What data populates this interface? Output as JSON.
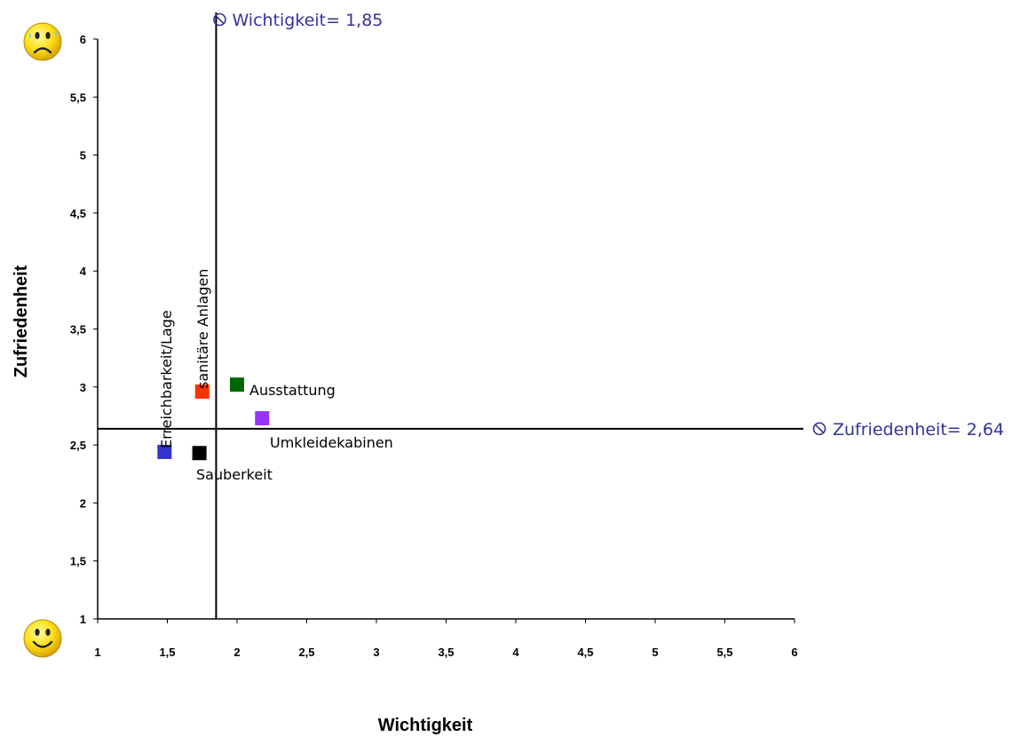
{
  "chart_data": {
    "type": "scatter",
    "xlabel": "Wichtigkeit",
    "ylabel": "Zufriedenheit",
    "xlim": [
      1,
      6
    ],
    "ylim": [
      1,
      6
    ],
    "x_ticks": [
      "1",
      "1,5",
      "2",
      "2,5",
      "3",
      "3,5",
      "4",
      "4,5",
      "5",
      "5,5",
      "6"
    ],
    "y_ticks": [
      "1",
      "1,5",
      "2",
      "2,5",
      "3",
      "3,5",
      "4",
      "4,5",
      "5",
      "5,5",
      "6"
    ],
    "grid": false,
    "points": [
      {
        "label": "Erreichbarkeit/Lage",
        "x": 1.48,
        "y": 2.44,
        "color": "#3333cc"
      },
      {
        "label": "sanitäre Anlagen",
        "x": 1.75,
        "y": 2.96,
        "color": "#ff3300"
      },
      {
        "label": "Ausstattung",
        "x": 2.0,
        "y": 3.02,
        "color": "#006600"
      },
      {
        "label": "Umkleidekabinen",
        "x": 2.18,
        "y": 2.73,
        "color": "#9933ff"
      },
      {
        "label": "Sauberkeit",
        "x": 1.73,
        "y": 2.43,
        "color": "#000000"
      }
    ],
    "reference_lines": [
      {
        "axis": "x",
        "value": 1.85,
        "label": "Wichtigkeit= 1,85",
        "color": "#000000"
      },
      {
        "axis": "y",
        "value": 2.64,
        "label": "Zufriedenheit= 2,64",
        "color": "#000000"
      }
    ],
    "label_color": "#33339a",
    "icons": {
      "top": "sad-smiley-icon",
      "bottom": "happy-smiley-icon"
    }
  }
}
